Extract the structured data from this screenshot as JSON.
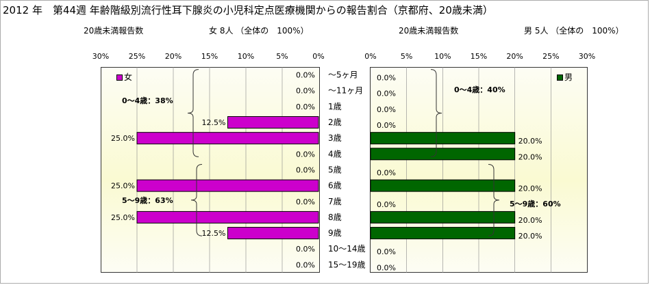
{
  "title": "2012 年　第44週 年齢階級別流行性耳下腺炎の小児科定点医療機関からの報告割合（京都府、20歳未満）",
  "left_header": {
    "label": "20歳未満報告数",
    "summary": "女  8人 （全体の　100%）"
  },
  "right_header": {
    "label": "20歳未満報告数",
    "summary": "男  5人 （全体の　100%）"
  },
  "colors": {
    "female": "#cc00cc",
    "male": "#006600",
    "grid": "#888888"
  },
  "chart_data": {
    "type": "bar",
    "orientation": "horizontal",
    "categories": [
      "〜5ヶ月",
      "〜11ヶ月",
      "1歳",
      "2歳",
      "3歳",
      "4歳",
      "5歳",
      "6歳",
      "7歳",
      "8歳",
      "9歳",
      "10〜14歳",
      "15〜19歳"
    ],
    "series": [
      {
        "name": "女",
        "values": [
          0.0,
          0.0,
          0.0,
          12.5,
          25.0,
          0.0,
          0.0,
          25.0,
          0.0,
          25.0,
          12.5,
          0.0,
          0.0
        ]
      },
      {
        "name": "男",
        "values": [
          0.0,
          0.0,
          0.0,
          0.0,
          20.0,
          20.0,
          0.0,
          20.0,
          0.0,
          20.0,
          20.0,
          0.0,
          0.0
        ]
      }
    ],
    "value_labels_female": [
      "0.0%",
      "0.0%",
      "0.0%",
      "12.5%",
      "25.0%",
      "0.0%",
      "0.0%",
      "25.0%",
      "0.0%",
      "25.0%",
      "12.5%",
      "0.0%",
      "0.0%"
    ],
    "value_labels_male": [
      "0.0%",
      "0.0%",
      "0.0%",
      "0.0%",
      "20.0%",
      "20.0%",
      "0.0%",
      "20.0%",
      "0.0%",
      "20.0%",
      "20.0%",
      "0.0%",
      "0.0%"
    ],
    "xlim": [
      0,
      30
    ],
    "ticks_left": [
      "30%",
      "25%",
      "20%",
      "15%",
      "10%",
      "5%",
      "0%"
    ],
    "ticks_right": [
      "0%",
      "5%",
      "10%",
      "15%",
      "20%",
      "25%",
      "30%"
    ],
    "annotations": {
      "female_0_4": "0〜4歳：38%",
      "female_5_9": "5〜9歳：63%",
      "male_0_4": "0〜4歳：40%",
      "male_5_9": "5〜9歳：60%"
    },
    "grid": true,
    "legend": "top-left (female), top-right (male)"
  }
}
